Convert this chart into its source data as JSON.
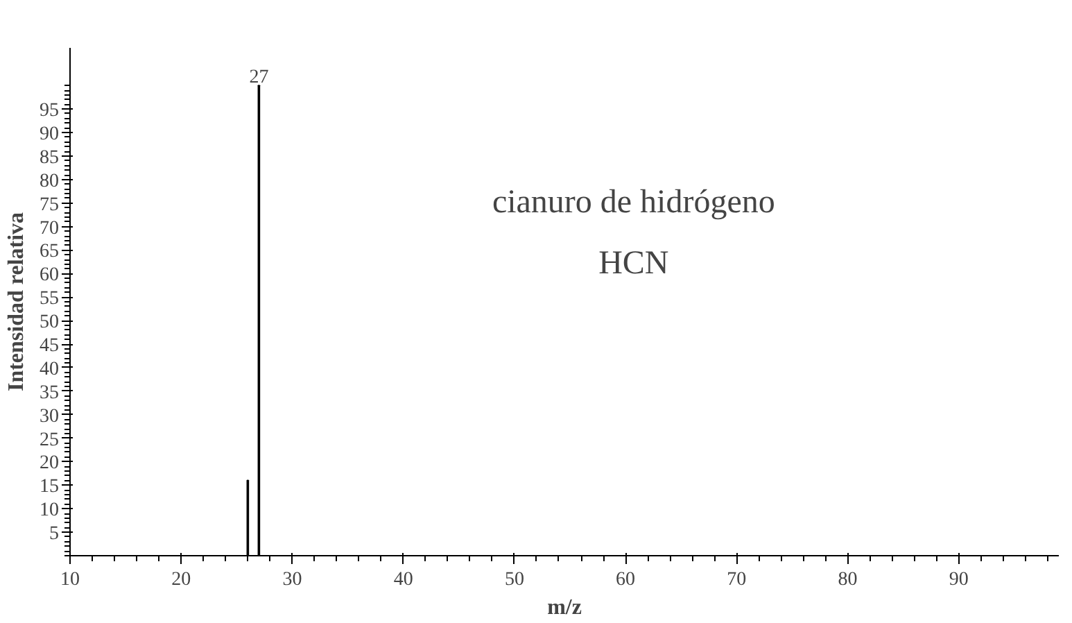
{
  "chart_data": {
    "type": "bar",
    "x": [
      26,
      27
    ],
    "values": [
      16,
      100
    ],
    "color": "#000000",
    "xlabel": "m/z",
    "ylabel": "Intensidad relativa",
    "annotations": [
      {
        "text": "27",
        "x": 27,
        "y": 100
      },
      "cianuro de hidrógeno",
      "HCN"
    ],
    "xlim": [
      10,
      99
    ],
    "ylim": [
      0,
      108
    ],
    "xticks": [
      10,
      20,
      30,
      40,
      50,
      60,
      70,
      80,
      90
    ],
    "yticks": [
      5,
      10,
      15,
      20,
      25,
      30,
      35,
      40,
      45,
      50,
      55,
      60,
      65,
      70,
      75,
      80,
      85,
      90,
      95
    ],
    "grid": false
  }
}
